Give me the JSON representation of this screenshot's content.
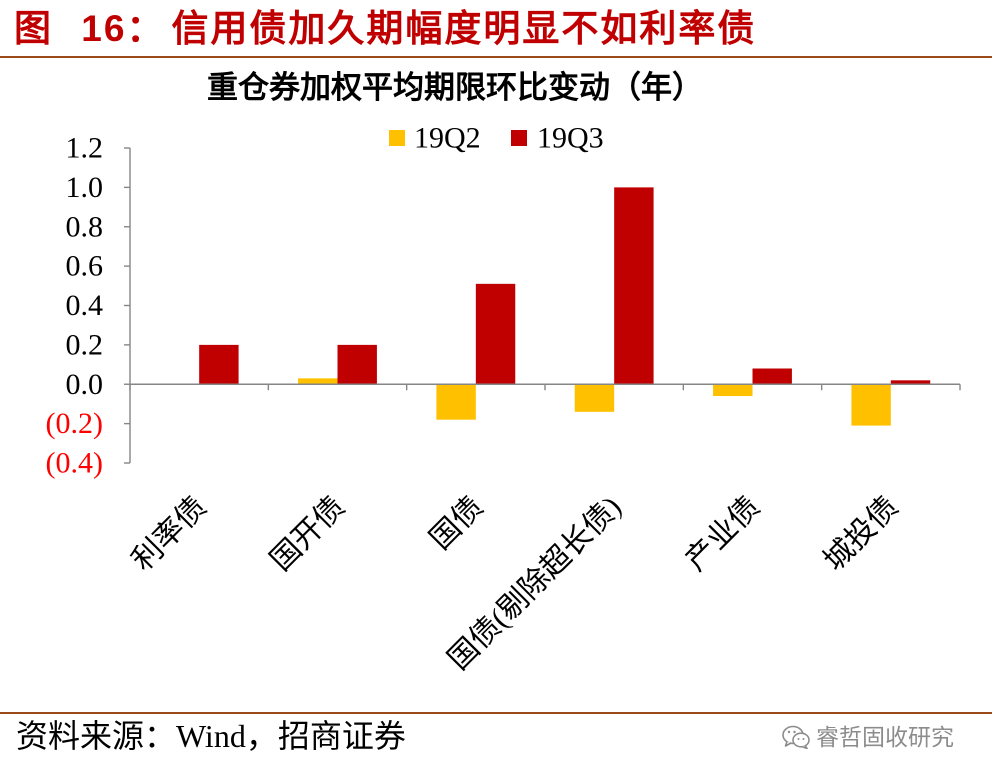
{
  "figure": {
    "number": "图 16：",
    "title": "信用债加久期幅度明显不如利率债",
    "color": "#C00000"
  },
  "chart_data": {
    "type": "bar",
    "title": "重仓券加权平均期限环比变动（年）",
    "categories": [
      "利率债",
      "国开债",
      "国债",
      "国债(剔除超长债)",
      "产业债",
      "城投债"
    ],
    "series": [
      {
        "name": "19Q2",
        "color": "#FFC000",
        "values": [
          0.0,
          0.03,
          -0.18,
          -0.14,
          -0.06,
          -0.21
        ]
      },
      {
        "name": "19Q3",
        "color": "#C00000",
        "values": [
          0.2,
          0.2,
          0.51,
          1.0,
          0.08,
          0.02
        ]
      }
    ],
    "ylim": [
      -0.4,
      1.2
    ],
    "yticks": [
      1.2,
      1.0,
      0.8,
      0.6,
      0.4,
      0.2,
      0.0,
      -0.2,
      -0.4
    ],
    "ytick_labels": [
      "1.2",
      "1.0",
      "0.8",
      "0.6",
      "0.4",
      "0.2",
      "0.0",
      "(0.2)",
      "(0.4)"
    ],
    "negative_label_color": "#FF0000",
    "legend_position": "top",
    "grid": false
  },
  "source": {
    "text": "资料来源：Wind，招商证券"
  },
  "watermark": {
    "icon": "wechat-icon",
    "text": "睿哲固收研究"
  }
}
